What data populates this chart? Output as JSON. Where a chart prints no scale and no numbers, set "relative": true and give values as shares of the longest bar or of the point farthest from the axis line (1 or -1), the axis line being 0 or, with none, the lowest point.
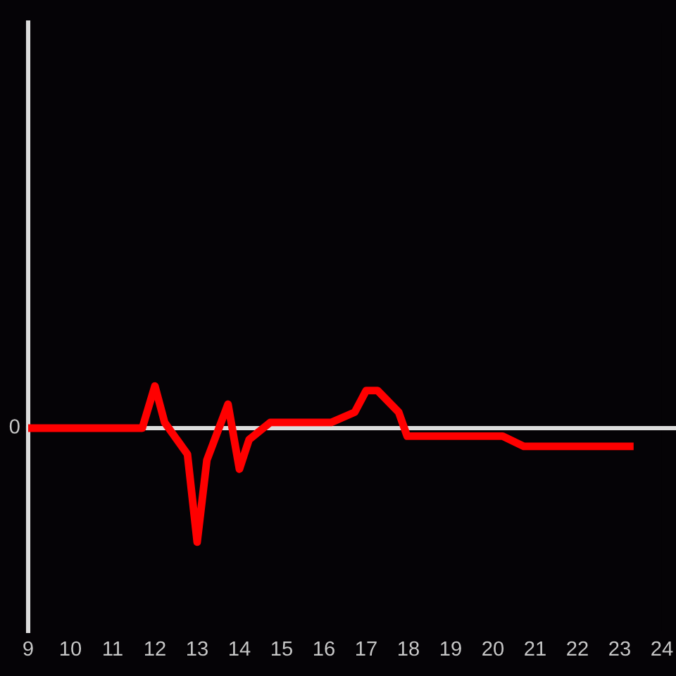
{
  "chart_data": {
    "type": "line",
    "relative": true,
    "x": [
      9,
      11.7,
      12,
      12.23,
      12.77,
      13,
      13.23,
      13.73,
      14,
      14.23,
      14.73,
      16.17,
      16.73,
      17,
      17.27,
      17.77,
      17.97,
      20.23,
      20.73,
      23.33
    ],
    "series": [
      {
        "color": "#ff0000",
        "values": [
          0,
          0,
          0.37,
          0.05,
          -0.23,
          -1,
          -0.28,
          0.21,
          -0.36,
          -0.1,
          0.05,
          0.05,
          0.14,
          0.33,
          0.33,
          0.14,
          -0.07,
          -0.07,
          -0.16,
          -0.16
        ]
      }
    ],
    "xlim": [
      9,
      24
    ],
    "xticks": [
      9,
      10,
      11,
      12,
      13,
      14,
      15,
      16,
      17,
      18,
      19,
      20,
      21,
      22,
      23,
      24
    ],
    "ref_lines": [
      {
        "axis": "y",
        "value": 0,
        "label": "0",
        "color": "#dcdcdc"
      }
    ]
  }
}
